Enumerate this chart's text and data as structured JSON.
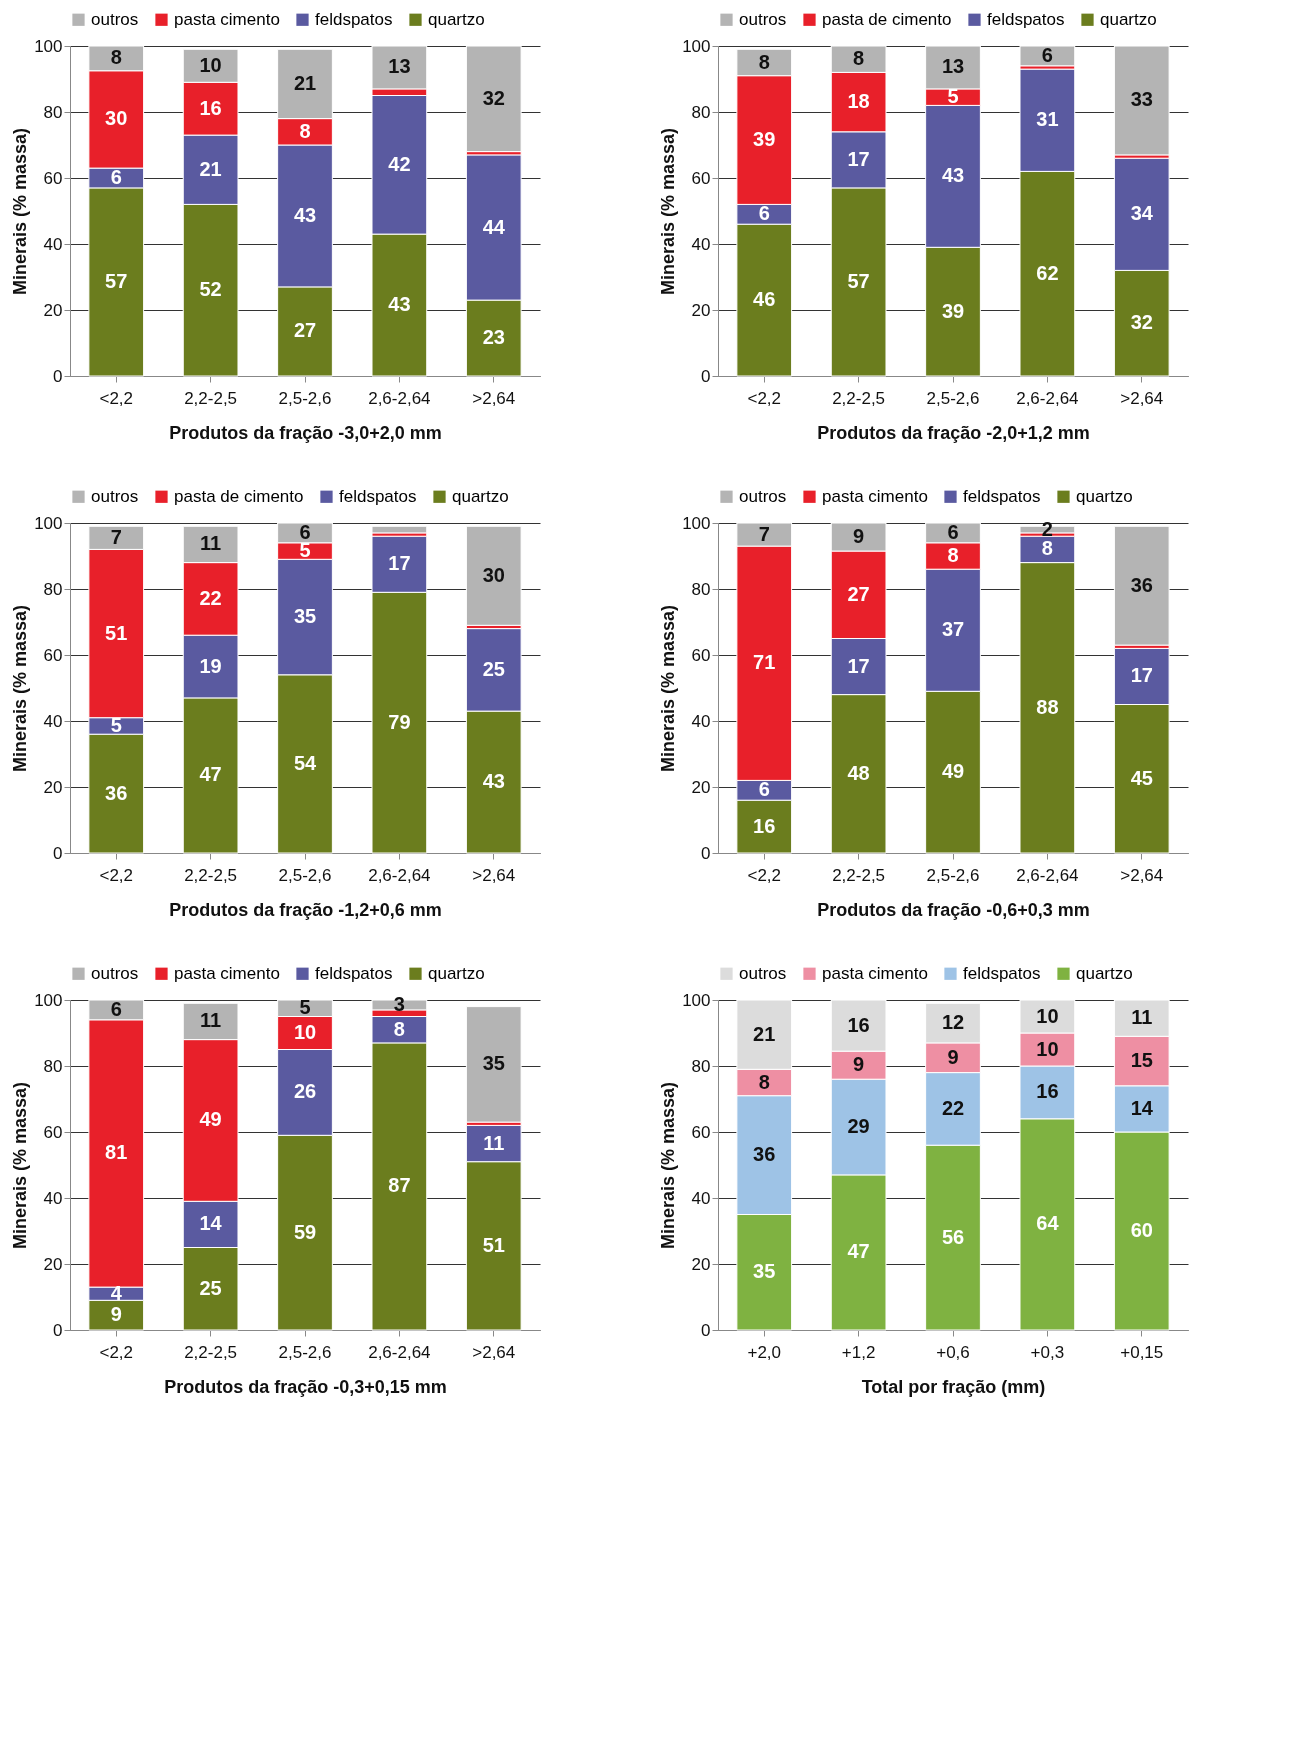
{
  "chart_data": [
    {
      "type": "bar",
      "stacked": true,
      "xlabel": "Produtos da fração -3,0+2,0 mm",
      "ylabel": "Minerais (% massa)",
      "categories": [
        "<2,2",
        "2,2-2,5",
        "2,5-2,6",
        "2,6-2,64",
        ">2,64"
      ],
      "ylim": [
        0,
        100
      ],
      "yticks": [
        0,
        20,
        40,
        60,
        80,
        100
      ],
      "grid": "y",
      "legend": "top",
      "series": [
        {
          "name": "quartzo",
          "color": "#6b7d1e",
          "values": [
            57,
            52,
            27,
            43,
            23
          ],
          "value_labels": [
            "57",
            "52",
            "27",
            "43",
            "23"
          ]
        },
        {
          "name": "feldspatos",
          "color": "#5a5aa0",
          "values": [
            6,
            21,
            43,
            42,
            44
          ],
          "value_labels": [
            "6",
            "21",
            "43",
            "42",
            "44"
          ]
        },
        {
          "name": "pasta cimento",
          "color": "#e8202a",
          "values": [
            29.5,
            16,
            8,
            2,
            1
          ],
          "value_labels": [
            "30",
            "16",
            "8",
            null,
            null
          ]
        },
        {
          "name": "outros",
          "color": "#b4b4b4",
          "values": [
            7.5,
            10,
            21,
            13,
            32
          ],
          "value_labels": [
            "8",
            "10",
            "21",
            "13",
            "32"
          ]
        }
      ]
    },
    {
      "type": "bar",
      "stacked": true,
      "xlabel": "Produtos da fração -2,0+1,2 mm",
      "ylabel": "Minerais (% massa)",
      "categories": [
        "<2,2",
        "2,2-2,5",
        "2,5-2,6",
        "2,6-2,64",
        ">2,64"
      ],
      "ylim": [
        0,
        100
      ],
      "yticks": [
        0,
        20,
        40,
        60,
        80,
        100
      ],
      "grid": "y",
      "legend": "top",
      "series": [
        {
          "name": "quartzo",
          "color": "#6b7d1e",
          "values": [
            46,
            57,
            39,
            62,
            32
          ],
          "value_labels": [
            "46",
            "57",
            "39",
            "62",
            "32"
          ]
        },
        {
          "name": "feldspatos",
          "color": "#5a5aa0",
          "values": [
            6,
            17,
            43,
            31,
            34
          ],
          "value_labels": [
            "6",
            "17",
            "43",
            "31",
            "34"
          ]
        },
        {
          "name": "pasta de cimento",
          "color": "#e8202a",
          "values": [
            39,
            18,
            5,
            1,
            1
          ],
          "value_labels": [
            "39",
            "18",
            "5",
            null,
            null
          ]
        },
        {
          "name": "outros",
          "color": "#b4b4b4",
          "values": [
            8,
            8,
            13,
            6,
            33
          ],
          "value_labels": [
            "8",
            "8",
            "13",
            "6",
            "33"
          ]
        }
      ]
    },
    {
      "type": "bar",
      "stacked": true,
      "xlabel": "Produtos da fração -1,2+0,6 mm",
      "ylabel": "Minerais (% massa)",
      "categories": [
        "<2,2",
        "2,2-2,5",
        "2,5-2,6",
        "2,6-2,64",
        ">2,64"
      ],
      "ylim": [
        0,
        100
      ],
      "yticks": [
        0,
        20,
        40,
        60,
        80,
        100
      ],
      "grid": "y",
      "legend": "top",
      "series": [
        {
          "name": "quartzo",
          "color": "#6b7d1e",
          "values": [
            36,
            47,
            54,
            79,
            43
          ],
          "value_labels": [
            "36",
            "47",
            "54",
            "79",
            "43"
          ]
        },
        {
          "name": "feldspatos",
          "color": "#5a5aa0",
          "values": [
            5,
            19,
            35,
            17,
            25
          ],
          "value_labels": [
            "5",
            "19",
            "35",
            "17",
            "25"
          ]
        },
        {
          "name": "pasta de cimento",
          "color": "#e8202a",
          "values": [
            51,
            22,
            5,
            1,
            1
          ],
          "value_labels": [
            "51",
            "22",
            "5",
            null,
            null
          ]
        },
        {
          "name": "outros",
          "color": "#b4b4b4",
          "values": [
            7,
            11,
            6,
            2,
            30
          ],
          "value_labels": [
            "7",
            "11",
            "6",
            null,
            "30"
          ]
        }
      ]
    },
    {
      "type": "bar",
      "stacked": true,
      "xlabel": "Produtos da fração -0,6+0,3 mm",
      "ylabel": "Minerais (% massa)",
      "categories": [
        "<2,2",
        "2,2-2,5",
        "2,5-2,6",
        "2,6-2,64",
        ">2,64"
      ],
      "ylim": [
        0,
        100
      ],
      "yticks": [
        0,
        20,
        40,
        60,
        80,
        100
      ],
      "grid": "y",
      "legend": "top",
      "series": [
        {
          "name": "quartzo",
          "color": "#6b7d1e",
          "values": [
            16,
            48,
            49,
            88,
            45
          ],
          "value_labels": [
            "16",
            "48",
            "49",
            "88",
            "45"
          ]
        },
        {
          "name": "feldspatos",
          "color": "#5a5aa0",
          "values": [
            6,
            17,
            37,
            8,
            17
          ],
          "value_labels": [
            "6",
            "17",
            "37",
            "8",
            "17"
          ]
        },
        {
          "name": "pasta cimento",
          "color": "#e8202a",
          "values": [
            71,
            26.5,
            8,
            1,
            1
          ],
          "value_labels": [
            "71",
            "27",
            "8",
            null,
            null
          ]
        },
        {
          "name": "outros",
          "color": "#b4b4b4",
          "values": [
            7,
            8.5,
            6,
            2,
            36
          ],
          "value_labels": [
            "7",
            "9",
            "6",
            "2",
            "36"
          ]
        }
      ]
    },
    {
      "type": "bar",
      "stacked": true,
      "xlabel": "Produtos da fração -0,3+0,15 mm",
      "ylabel": "Minerais (% massa)",
      "categories": [
        "<2,2",
        "2,2-2,5",
        "2,5-2,6",
        "2,6-2,64",
        ">2,64"
      ],
      "ylim": [
        0,
        100
      ],
      "yticks": [
        0,
        20,
        40,
        60,
        80,
        100
      ],
      "grid": "y",
      "legend": "top",
      "series": [
        {
          "name": "quartzo",
          "color": "#6b7d1e",
          "values": [
            9,
            25,
            59,
            87,
            51
          ],
          "value_labels": [
            "9",
            "25",
            "59",
            "87",
            "51"
          ]
        },
        {
          "name": "feldspatos",
          "color": "#5a5aa0",
          "values": [
            4,
            14,
            26,
            8,
            11
          ],
          "value_labels": [
            "4",
            "14",
            "26",
            "8",
            "11"
          ]
        },
        {
          "name": "pasta cimento",
          "color": "#e8202a",
          "values": [
            81,
            49,
            10,
            2,
            1
          ],
          "value_labels": [
            "81",
            "49",
            "10",
            null,
            null
          ]
        },
        {
          "name": "outros",
          "color": "#b4b4b4",
          "values": [
            6,
            11,
            5,
            3,
            35
          ],
          "value_labels": [
            "6",
            "11",
            "5",
            "3",
            "35"
          ]
        }
      ]
    },
    {
      "type": "bar",
      "stacked": true,
      "xlabel": "Total por fração (mm)",
      "ylabel": "Minerais (% massa)",
      "categories": [
        "+2,0",
        "+1,2",
        "+0,6",
        "+0,3",
        "+0,15"
      ],
      "ylim": [
        0,
        100
      ],
      "yticks": [
        0,
        20,
        40,
        60,
        80,
        100
      ],
      "grid": "y",
      "legend": "top",
      "series": [
        {
          "name": "quartzo",
          "color": "#7fb241",
          "values": [
            35,
            47,
            56,
            64,
            60
          ],
          "value_labels": [
            "35",
            "47",
            "56",
            "64",
            "60"
          ]
        },
        {
          "name": "feldspatos",
          "color": "#9ec3e6",
          "values": [
            36,
            29,
            22,
            16,
            14
          ],
          "value_labels": [
            "36",
            "29",
            "22",
            "16",
            "14"
          ]
        },
        {
          "name": "pasta cimento",
          "color": "#ee8fa3",
          "values": [
            8,
            8.5,
            9,
            10,
            15
          ],
          "value_labels": [
            "8",
            "9",
            "9",
            "10",
            "15"
          ]
        },
        {
          "name": "outros",
          "color": "#dcdcdc",
          "values": [
            21,
            15.5,
            12,
            10,
            11
          ],
          "value_labels": [
            "21",
            "16",
            "12",
            "10",
            "11"
          ]
        }
      ]
    }
  ]
}
